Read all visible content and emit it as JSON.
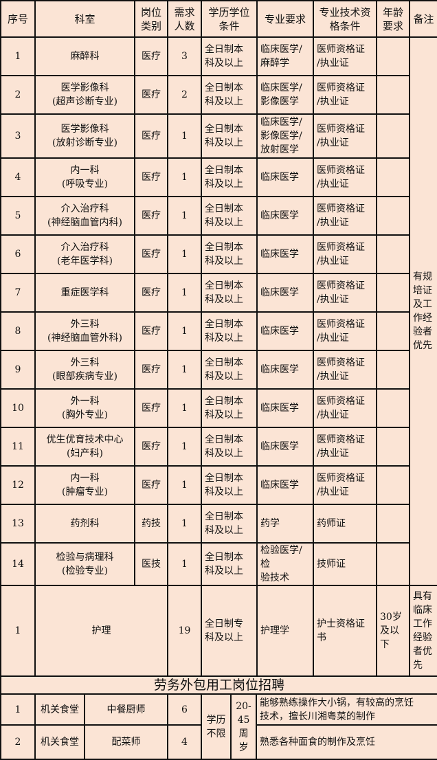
{
  "header": {
    "seq": "序号",
    "dept": "科室",
    "category": "岗位\n类别",
    "count": "需求\n人数",
    "education": "学历学位\n条件",
    "major": "专业要求",
    "qualification": "专业技术资\n格条件",
    "age": "年龄\n要求",
    "remark": "备注"
  },
  "rows": [
    {
      "seq": "1",
      "dept": "麻醉科",
      "category": "医疗",
      "count": "3",
      "education": "全日制本\n科及以上",
      "major": "临床医学/\n麻醉学",
      "qualification": "医师资格证\n/执业证"
    },
    {
      "seq": "2",
      "dept": "医学影像科\n(超声诊断专业)",
      "category": "医疗",
      "count": "2",
      "education": "全日制本\n科及以上",
      "major": "临床医学/\n影像医学",
      "qualification": "医师资格证\n/执业证"
    },
    {
      "seq": "3",
      "dept": "医学影像科\n(放射诊断专业)",
      "category": "医疗",
      "count": "1",
      "education": "全日制本\n科及以上",
      "major": "临床医学/\n影像医学/\n放射医学",
      "qualification": "医师资格证\n/执业证"
    },
    {
      "seq": "4",
      "dept": "内一科\n(呼吸专业)",
      "category": "医疗",
      "count": "1",
      "education": "全日制本\n科及以上",
      "major": "临床医学",
      "qualification": "医师资格证\n/执业证"
    },
    {
      "seq": "5",
      "dept": "介入治疗科\n(神经脑血管内科)",
      "category": "医疗",
      "count": "1",
      "education": "全日制本\n科及以上",
      "major": "临床医学",
      "qualification": "医师资格证\n/执业证"
    },
    {
      "seq": "6",
      "dept": "介入治疗科\n(老年医学科)",
      "category": "医疗",
      "count": "1",
      "education": "全日制本\n科及以上",
      "major": "临床医学",
      "qualification": "医师资格证\n/执业证"
    },
    {
      "seq": "7",
      "dept": "重症医学科",
      "category": "医疗",
      "count": "1",
      "education": "全日制本\n科及以上",
      "major": "临床医学",
      "qualification": "医师资格证\n/执业证"
    },
    {
      "seq": "8",
      "dept": "外三科\n(神经脑血管外科)",
      "category": "医疗",
      "count": "1",
      "education": "全日制本\n科及以上",
      "major": "临床医学",
      "qualification": "医师资格证\n/执业证"
    },
    {
      "seq": "9",
      "dept": "外三科\n(眼部疾病专业)",
      "category": "医疗",
      "count": "1",
      "education": "全日制本\n科及以上",
      "major": "临床医学",
      "qualification": "医师资格证\n/执业证"
    },
    {
      "seq": "10",
      "dept": "外一科\n(胸外专业)",
      "category": "医疗",
      "count": "1",
      "education": "全日制本\n科及以上",
      "major": "临床医学",
      "qualification": "医师资格证\n/执业证"
    },
    {
      "seq": "11",
      "dept": "优生优育技术中心\n(妇产科)",
      "category": "医疗",
      "count": "1",
      "education": "全日制本\n科及以上",
      "major": "临床医学",
      "qualification": "医师资格证\n/执业证"
    },
    {
      "seq": "12",
      "dept": "内一科\n(肿瘤专业)",
      "category": "医疗",
      "count": "1",
      "education": "全日制本\n科及以上",
      "major": "临床医学",
      "qualification": "医师资格证\n/执业证"
    },
    {
      "seq": "13",
      "dept": "药剂科",
      "category": "药技",
      "count": "1",
      "education": "全日制本\n科及以上",
      "major": "药学",
      "qualification": "药师证"
    },
    {
      "seq": "14",
      "dept": "检验与病理科\n(检验专业)",
      "category": "医技",
      "count": "1",
      "education": "全日制本\n科及以上",
      "major": "检验医学/检\n验技术",
      "qualification": "技师证"
    }
  ],
  "merged_remark": "有规\n培证\n及工\n作经\n验者\n优先",
  "nursing": {
    "seq": "1",
    "dept": "护理",
    "count": "19",
    "education": "全日制专\n科及以上",
    "major": "护理学",
    "qualification": "护士资格证\n书",
    "age": "30岁\n及以\n下",
    "remark": "具有\n临床\n工作\n经验\n者优\n先"
  },
  "outsource": {
    "title": "劳务外包用工岗位招聘",
    "education": "学历\n不限",
    "age": "20-\n45周\n岁",
    "rows": [
      {
        "seq": "1",
        "unit": "机关食堂",
        "position": "中餐厨师",
        "count": "6",
        "requirement": "能够熟练操作大小锅，有较高的烹饪\n技术，擅长川湘粤菜的制作"
      },
      {
        "seq": "2",
        "unit": "机关食堂",
        "position": "配菜师",
        "count": "4",
        "requirement": "熟悉各种面食的制作及烹饪"
      }
    ]
  }
}
